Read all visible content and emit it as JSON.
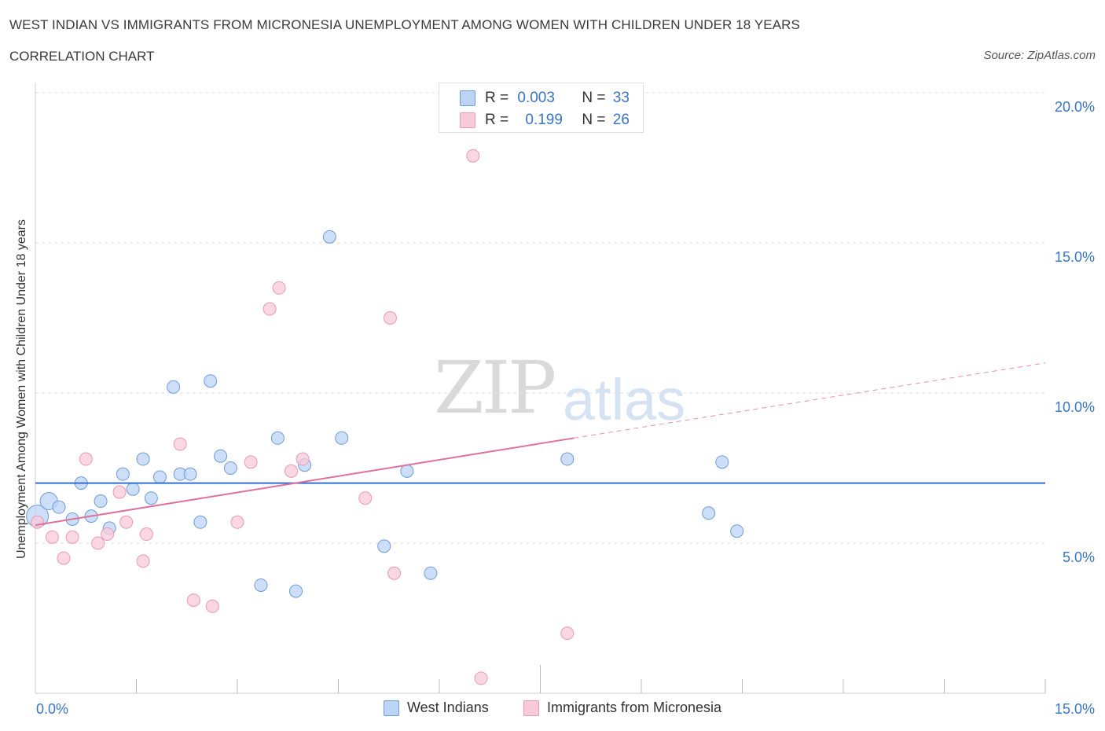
{
  "header": {
    "title": "WEST INDIAN VS IMMIGRANTS FROM MICRONESIA UNEMPLOYMENT AMONG WOMEN WITH CHILDREN UNDER 18 YEARS",
    "subtitle": "CORRELATION CHART",
    "source": "Source: ZipAtlas.com"
  },
  "watermark": {
    "zip": "ZIP",
    "atlas": "atlas"
  },
  "legend": {
    "row1": {
      "r_label": "R = ",
      "r_value": "0.003",
      "n_label": "N = ",
      "n_value": "33"
    },
    "row2": {
      "r_label": "R = ",
      "r_value": "0.199",
      "n_label": "N = ",
      "n_value": "26"
    }
  },
  "bottom_legend": {
    "series1": "West Indians",
    "series2": "Immigrants from Micronesia"
  },
  "colors": {
    "blue_fill": "#bcd4f5",
    "blue_stroke": "#6f9bd8",
    "blue_line": "#2f6fd0",
    "pink_fill": "#f8c9d8",
    "pink_stroke": "#e89ab3",
    "pink_line": "#e0709a",
    "tick_label": "#3a74c4",
    "grid": "#dddddd"
  },
  "chart_data": {
    "type": "scatter",
    "title": "WEST INDIAN VS IMMIGRANTS FROM MICRONESIA UNEMPLOYMENT AMONG WOMEN WITH CHILDREN UNDER 18 YEARS",
    "xlabel": "",
    "ylabel": "Unemployment Among Women with Children Under 18 years",
    "xlim": [
      0,
      15
    ],
    "ylim": [
      0,
      20
    ],
    "x_tick_labels": [
      "0.0%",
      "15.0%"
    ],
    "y_ticks": [
      5,
      10,
      15,
      20
    ],
    "y_tick_labels": [
      "5.0%",
      "10.0%",
      "15.0%",
      "20.0%"
    ],
    "grid": "horizontal dashed",
    "legend_position": "top-center",
    "series": [
      {
        "name": "West Indians",
        "R": 0.003,
        "N": 33,
        "points": [
          [
            0.03,
            5.9
          ],
          [
            0.2,
            6.4
          ],
          [
            0.35,
            6.2
          ],
          [
            0.55,
            5.8
          ],
          [
            0.68,
            7.0
          ],
          [
            0.83,
            5.9
          ],
          [
            0.97,
            6.4
          ],
          [
            1.1,
            5.5
          ],
          [
            1.3,
            7.3
          ],
          [
            1.45,
            6.8
          ],
          [
            1.6,
            7.8
          ],
          [
            1.72,
            6.5
          ],
          [
            1.85,
            7.2
          ],
          [
            2.05,
            10.2
          ],
          [
            2.15,
            7.3
          ],
          [
            2.3,
            7.3
          ],
          [
            2.45,
            5.7
          ],
          [
            2.6,
            10.4
          ],
          [
            2.75,
            7.9
          ],
          [
            2.9,
            7.5
          ],
          [
            3.35,
            3.6
          ],
          [
            3.6,
            8.5
          ],
          [
            3.87,
            3.4
          ],
          [
            4.0,
            7.6
          ],
          [
            4.37,
            15.2
          ],
          [
            4.55,
            8.5
          ],
          [
            5.18,
            4.9
          ],
          [
            5.52,
            7.4
          ],
          [
            5.87,
            4.0
          ],
          [
            7.9,
            7.8
          ],
          [
            10.0,
            6.0
          ],
          [
            10.2,
            7.7
          ],
          [
            10.42,
            5.4
          ]
        ],
        "trend": {
          "x": [
            0,
            15
          ],
          "y": [
            7.0,
            7.0
          ],
          "style": "solid"
        }
      },
      {
        "name": "Immigrants from Micronesia",
        "R": 0.199,
        "N": 26,
        "points": [
          [
            0.03,
            5.7
          ],
          [
            0.25,
            5.2
          ],
          [
            0.42,
            4.5
          ],
          [
            0.55,
            5.2
          ],
          [
            0.75,
            7.8
          ],
          [
            0.93,
            5.0
          ],
          [
            1.07,
            5.3
          ],
          [
            1.25,
            6.7
          ],
          [
            1.35,
            5.7
          ],
          [
            1.6,
            4.4
          ],
          [
            1.65,
            5.3
          ],
          [
            2.15,
            8.3
          ],
          [
            2.35,
            3.1
          ],
          [
            2.63,
            2.9
          ],
          [
            3.0,
            5.7
          ],
          [
            3.2,
            7.7
          ],
          [
            3.48,
            12.8
          ],
          [
            3.62,
            13.5
          ],
          [
            3.8,
            7.4
          ],
          [
            3.97,
            7.8
          ],
          [
            4.9,
            6.5
          ],
          [
            5.27,
            12.5
          ],
          [
            5.33,
            4.0
          ],
          [
            6.5,
            17.9
          ],
          [
            6.62,
            0.5
          ],
          [
            7.9,
            2.0
          ]
        ],
        "trend": {
          "x": [
            0,
            8.0,
            15
          ],
          "y": [
            5.6,
            8.5,
            11.0
          ],
          "style": "solid to 8.0, dashed beyond"
        }
      }
    ]
  }
}
